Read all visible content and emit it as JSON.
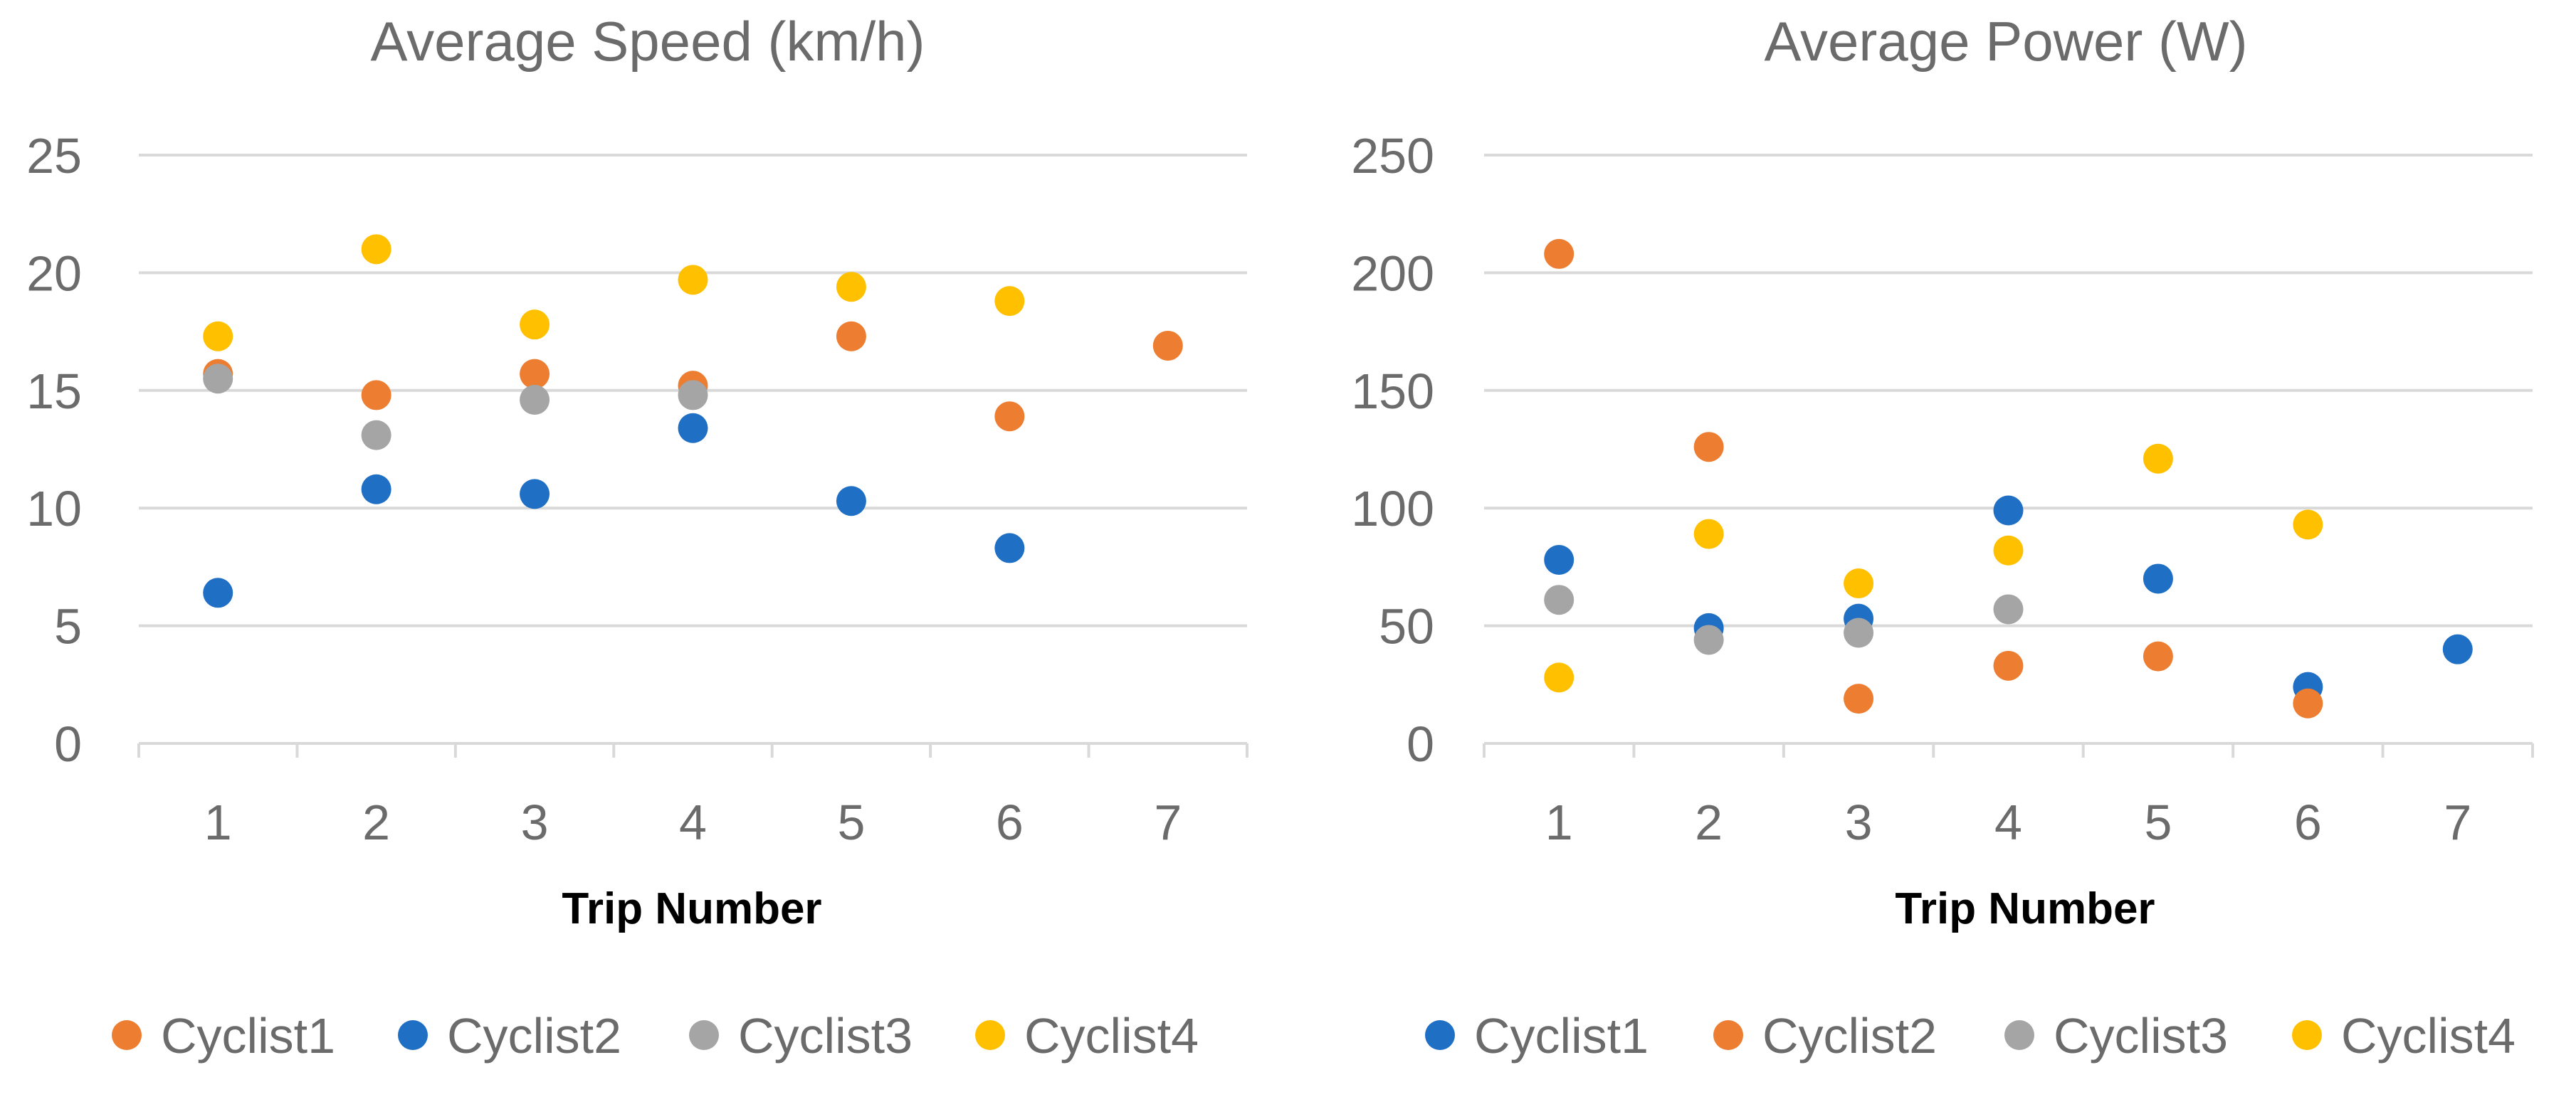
{
  "chart_data": [
    {
      "type": "scatter",
      "title": "Average Speed (km/h)",
      "xlabel": "Trip Number",
      "ylabel": "",
      "x_categories": [
        "1",
        "2",
        "3",
        "4",
        "5",
        "6",
        "7"
      ],
      "yticks": [
        "0",
        "5",
        "10",
        "15",
        "20",
        "25"
      ],
      "ylim": [
        0,
        25
      ],
      "grid": true,
      "legend_position": "bottom",
      "series": [
        {
          "name": "Cyclist1",
          "color": "#ED7D31",
          "values": [
            15.7,
            14.8,
            15.7,
            15.2,
            17.3,
            13.9,
            16.9
          ]
        },
        {
          "name": "Cyclist2",
          "color": "#1F6FC5",
          "values": [
            6.4,
            10.8,
            10.6,
            13.4,
            10.3,
            8.3,
            null
          ]
        },
        {
          "name": "Cyclist3",
          "color": "#A5A5A5",
          "values": [
            15.5,
            13.1,
            14.6,
            14.8,
            null,
            null,
            null
          ]
        },
        {
          "name": "Cyclist4",
          "color": "#FFC000",
          "values": [
            17.3,
            21.0,
            17.8,
            19.7,
            19.4,
            18.8,
            null
          ]
        }
      ]
    },
    {
      "type": "scatter",
      "title": "Average Power (W)",
      "xlabel": "Trip Number",
      "ylabel": "",
      "x_categories": [
        "1",
        "2",
        "3",
        "4",
        "5",
        "6",
        "7"
      ],
      "yticks": [
        "0",
        "50",
        "100",
        "150",
        "200",
        "250"
      ],
      "ylim": [
        0,
        250
      ],
      "grid": true,
      "legend_position": "bottom",
      "series": [
        {
          "name": "Cyclist1",
          "color": "#1F6FC5",
          "values": [
            78,
            49,
            53,
            99,
            70,
            24,
            40
          ]
        },
        {
          "name": "Cyclist2",
          "color": "#ED7D31",
          "values": [
            208,
            126,
            19,
            33,
            37,
            17,
            null
          ]
        },
        {
          "name": "Cyclist3",
          "color": "#A5A5A5",
          "values": [
            61,
            44,
            47,
            57,
            null,
            null,
            null
          ]
        },
        {
          "name": "Cyclist4",
          "color": "#FFC000",
          "values": [
            28,
            89,
            68,
            82,
            121,
            93,
            null
          ]
        }
      ]
    }
  ]
}
